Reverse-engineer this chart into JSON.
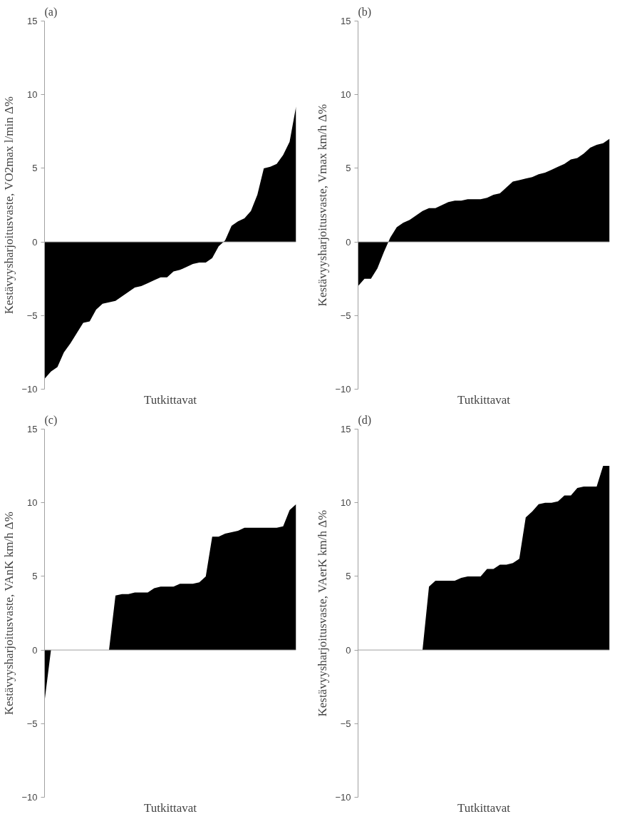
{
  "chart_data": [
    {
      "type": "area",
      "title": "(a)",
      "xlabel": "Tutkittavat",
      "ylabel": "Kestävyysharjoitusvaste, VO2max l/min Δ%",
      "tick_labels": "y",
      "ylim": [
        -10,
        15
      ],
      "yticks": [
        -10,
        -5,
        0,
        5,
        10,
        15
      ],
      "color": "#000000",
      "categories": [
        null,
        null,
        null,
        null,
        null,
        null,
        null,
        null,
        null,
        null,
        null,
        null,
        null,
        null,
        null,
        null,
        null,
        null,
        null,
        null,
        null,
        null,
        null,
        null,
        null,
        null,
        null,
        null,
        null,
        null,
        null,
        null,
        null,
        null,
        null,
        null,
        null,
        null,
        null,
        null
      ],
      "values": [
        -9.3,
        -8.8,
        -8.5,
        -7.5,
        -6.9,
        -6.2,
        -5.5,
        -5.4,
        -4.6,
        -4.2,
        -4.1,
        -4.0,
        -3.7,
        -3.4,
        -3.1,
        -3.0,
        -2.8,
        -2.6,
        -2.4,
        -2.4,
        -2.0,
        -1.9,
        -1.7,
        -1.5,
        -1.4,
        -1.4,
        -1.1,
        -0.3,
        0.1,
        1.1,
        1.4,
        1.6,
        2.1,
        3.2,
        5.0,
        5.1,
        5.3,
        5.9,
        6.8,
        9.2
      ]
    },
    {
      "type": "area",
      "title": "(b)",
      "xlabel": "Tutkittavat",
      "ylabel": "Kestävyysharjoitusvaste, Vmax km/h Δ%",
      "tick_labels": "y",
      "ylim": [
        -10,
        15
      ],
      "yticks": [
        -10,
        -5,
        0,
        5,
        10,
        15
      ],
      "color": "#000000",
      "categories": [
        null,
        null,
        null,
        null,
        null,
        null,
        null,
        null,
        null,
        null,
        null,
        null,
        null,
        null,
        null,
        null,
        null,
        null,
        null,
        null,
        null,
        null,
        null,
        null,
        null,
        null,
        null,
        null,
        null,
        null,
        null,
        null,
        null,
        null,
        null,
        null,
        null,
        null,
        null,
        null
      ],
      "values": [
        -3.0,
        -2.5,
        -2.5,
        -1.8,
        -0.7,
        0.3,
        1.0,
        1.3,
        1.5,
        1.8,
        2.1,
        2.3,
        2.3,
        2.5,
        2.7,
        2.8,
        2.8,
        2.9,
        2.9,
        2.9,
        3.0,
        3.2,
        3.3,
        3.7,
        4.1,
        4.2,
        4.3,
        4.4,
        4.6,
        4.7,
        4.9,
        5.1,
        5.3,
        5.6,
        5.7,
        6.0,
        6.4,
        6.6,
        6.7,
        7.0
      ]
    },
    {
      "type": "area",
      "title": "(c)",
      "xlabel": "Tutkittavat",
      "ylabel": "Kestävyysharjoitusvaste, VAnK km/h Δ%",
      "tick_labels": "y",
      "ylim": [
        -10,
        15
      ],
      "yticks": [
        -10,
        -5,
        0,
        5,
        10,
        15
      ],
      "color": "#000000",
      "categories": [
        null,
        null,
        null,
        null,
        null,
        null,
        null,
        null,
        null,
        null,
        null,
        null,
        null,
        null,
        null,
        null,
        null,
        null,
        null,
        null,
        null,
        null,
        null,
        null,
        null,
        null,
        null,
        null,
        null,
        null,
        null,
        null,
        null,
        null,
        null,
        null,
        null,
        null,
        null,
        null
      ],
      "values": [
        -3.5,
        0,
        0,
        0,
        0,
        0,
        0,
        0,
        0,
        0,
        0,
        3.7,
        3.8,
        3.8,
        3.9,
        3.9,
        3.9,
        4.2,
        4.3,
        4.3,
        4.3,
        4.5,
        4.5,
        4.5,
        4.6,
        5.0,
        7.7,
        7.7,
        7.9,
        8.0,
        8.1,
        8.3,
        8.3,
        8.3,
        8.3,
        8.3,
        8.3,
        8.4,
        9.5,
        9.9
      ]
    },
    {
      "type": "area",
      "title": "(d)",
      "xlabel": "Tutkittavat",
      "ylabel": "Kestävyysharjoitusvaste, VAerK km/h Δ%",
      "tick_labels": "y",
      "ylim": [
        -10,
        15
      ],
      "yticks": [
        -10,
        -5,
        0,
        5,
        10,
        15
      ],
      "color": "#000000",
      "categories": [
        null,
        null,
        null,
        null,
        null,
        null,
        null,
        null,
        null,
        null,
        null,
        null,
        null,
        null,
        null,
        null,
        null,
        null,
        null,
        null,
        null,
        null,
        null,
        null,
        null,
        null,
        null,
        null,
        null,
        null,
        null,
        null,
        null,
        null,
        null,
        null,
        null,
        null,
        null,
        null
      ],
      "values": [
        0,
        0,
        0,
        0,
        0,
        0,
        0,
        0,
        0,
        0,
        0,
        4.3,
        4.7,
        4.7,
        4.7,
        4.7,
        4.9,
        5.0,
        5.0,
        5.0,
        5.5,
        5.5,
        5.8,
        5.8,
        5.9,
        6.2,
        9.0,
        9.4,
        9.9,
        10.0,
        10.0,
        10.1,
        10.5,
        10.5,
        11.0,
        11.1,
        11.1,
        11.1,
        12.5,
        12.5
      ]
    }
  ]
}
